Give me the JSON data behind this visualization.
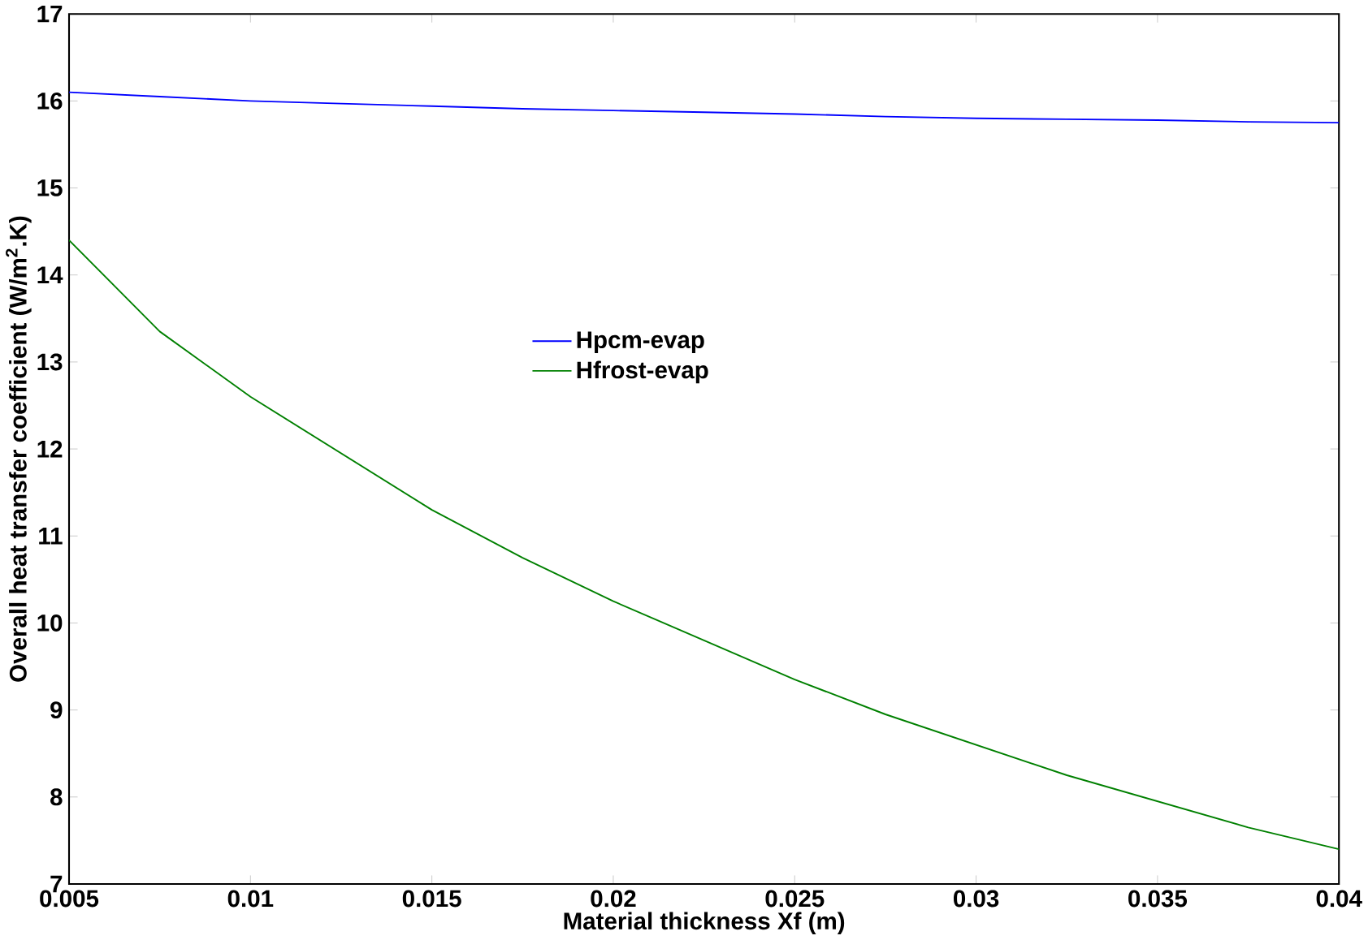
{
  "chart_data": {
    "type": "line",
    "xlabel": "Material thickness Xf (m)",
    "ylabel": "Overall heat transfer coefficient (W/m$^{2}$.K)",
    "xlim": [
      0.005,
      0.04
    ],
    "ylim": [
      7,
      17
    ],
    "xticks": [
      0.005,
      0.01,
      0.015,
      0.02,
      0.025,
      0.03,
      0.035,
      0.04
    ],
    "yticks": [
      7,
      8,
      9,
      10,
      11,
      12,
      13,
      14,
      15,
      16,
      17
    ],
    "grid": false,
    "legend": "center",
    "line_style": "solid",
    "series": [
      {
        "name": "Hpcm-evap",
        "color": "#0000ff",
        "x": [
          0.005,
          0.0075,
          0.01,
          0.0125,
          0.015,
          0.0175,
          0.02,
          0.0225,
          0.025,
          0.0275,
          0.03,
          0.0325,
          0.035,
          0.0375,
          0.04
        ],
        "values": [
          16.1,
          16.05,
          16.0,
          15.97,
          15.94,
          15.91,
          15.89,
          15.87,
          15.85,
          15.82,
          15.8,
          15.79,
          15.78,
          15.76,
          15.75
        ]
      },
      {
        "name": "Hfrost-evap",
        "color": "#008000",
        "x": [
          0.005,
          0.0075,
          0.01,
          0.0125,
          0.015,
          0.0175,
          0.02,
          0.0225,
          0.025,
          0.0275,
          0.03,
          0.0325,
          0.035,
          0.0375,
          0.04
        ],
        "values": [
          14.4,
          13.35,
          12.6,
          11.95,
          11.3,
          10.75,
          10.25,
          9.8,
          9.35,
          8.95,
          8.6,
          8.25,
          7.95,
          7.65,
          7.4
        ]
      }
    ]
  }
}
